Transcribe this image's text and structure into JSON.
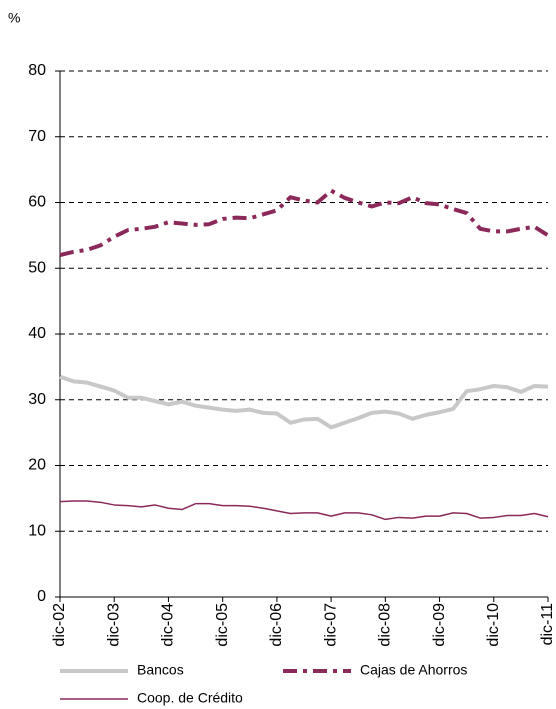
{
  "chart_data": {
    "type": "line",
    "y_label": "%",
    "categories": [
      "dic-02",
      null,
      null,
      null,
      "dic-03",
      null,
      null,
      null,
      "dic-04",
      null,
      null,
      null,
      "dic-05",
      null,
      null,
      null,
      "dic-06",
      null,
      null,
      null,
      "dic-07",
      null,
      null,
      null,
      "dic-08",
      null,
      null,
      null,
      "dic-09",
      null,
      null,
      null,
      "dic-10",
      null,
      null,
      null,
      "dic-11"
    ],
    "series": [
      {
        "name": "Bancos",
        "color": "#c8c8c8",
        "line_style": "solid",
        "values": [
          33.5,
          32.8,
          32.6,
          32,
          31.4,
          30.3,
          30.3,
          29.8,
          29.3,
          29.7,
          29.1,
          28.8,
          28.5,
          28.3,
          28.5,
          28.0,
          27.9,
          26.5,
          27.0,
          27.1,
          25.8,
          26.5,
          27.2,
          28.0,
          28.2,
          27.9,
          27.1,
          27.7,
          28.1,
          28.6,
          31.3,
          31.6,
          32.1,
          31.9,
          31.2,
          32.1,
          32.0
        ]
      },
      {
        "name": "Cajas de Ahorros",
        "color": "#8b2a5a",
        "line_style": "dashdot",
        "values": [
          52.0,
          52.5,
          52.8,
          53.5,
          54.8,
          55.8,
          56.0,
          56.3,
          57.0,
          56.8,
          56.6,
          56.7,
          57.5,
          57.7,
          57.6,
          58.2,
          58.8,
          60.8,
          60.3,
          60.0,
          61.8,
          60.7,
          60.0,
          59.4,
          60.0,
          59.9,
          60.8,
          59.9,
          59.7,
          59.0,
          58.4,
          56.0,
          55.6,
          55.6,
          56.0,
          56.3,
          55.0
        ]
      },
      {
        "name": "Coop. de Crédito",
        "color": "#8b2a5a",
        "line_style": "solid",
        "values": [
          14.5,
          14.6,
          14.6,
          14.4,
          14.0,
          13.9,
          13.7,
          14.0,
          13.5,
          13.3,
          14.2,
          14.2,
          13.9,
          13.9,
          13.8,
          13.5,
          13.1,
          12.7,
          12.8,
          12.8,
          12.3,
          12.8,
          12.8,
          12.5,
          11.8,
          12.1,
          12.0,
          12.3,
          12.3,
          12.8,
          12.7,
          12.0,
          12.1,
          12.4,
          12.4,
          12.7,
          12.2
        ]
      }
    ],
    "ylim": [
      0,
      80
    ],
    "yticks": [
      0,
      10,
      20,
      30,
      40,
      50,
      60,
      70,
      80
    ],
    "grid": true
  }
}
